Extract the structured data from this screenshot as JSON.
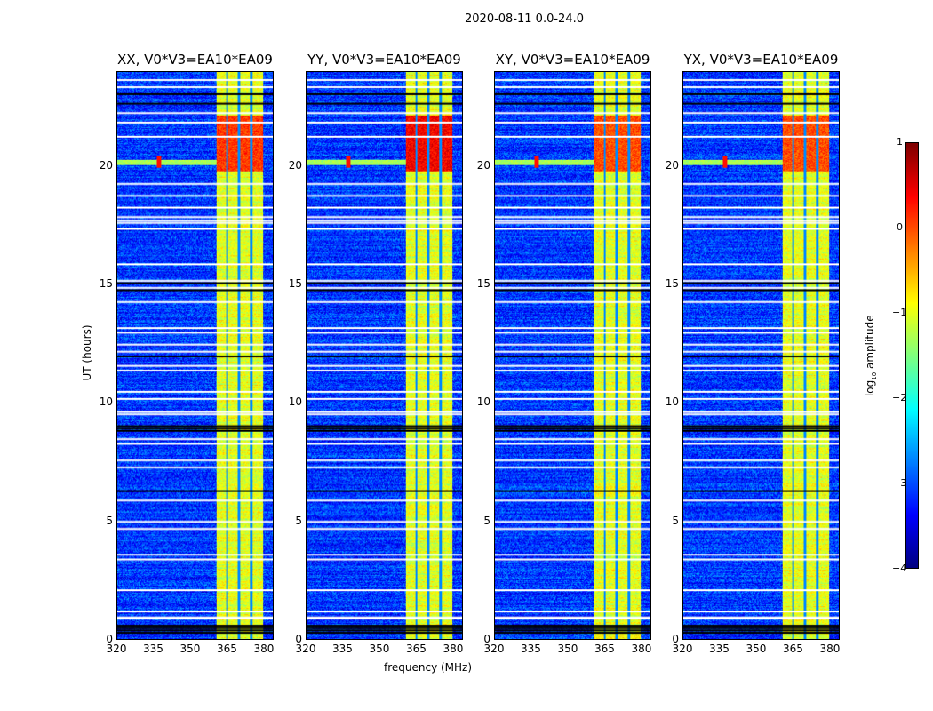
{
  "title": "2020-08-11 0.0-24.0",
  "chart_data": {
    "type": "heatmap",
    "title": "2020-08-11 0.0-24.0",
    "xlabel": "frequency (MHz)",
    "ylabel": "UT (hours)",
    "xlim": [
      320,
      384
    ],
    "ylim": [
      0,
      24
    ],
    "xticks": [
      320,
      335,
      350,
      365,
      380
    ],
    "yticks": [
      0,
      5,
      10,
      15,
      20
    ],
    "panels": [
      {
        "title": "XX, V0*V3=EA10*EA09",
        "band_peak": 0.2
      },
      {
        "title": "YY, V0*V3=EA10*EA09",
        "band_peak": 0.5
      },
      {
        "title": "XY, V0*V3=EA10*EA09",
        "band_peak": 0.1
      },
      {
        "title": "YX, V0*V3=EA10*EA09",
        "band_peak": 0.1
      }
    ],
    "colorbar": {
      "label": "log10 amplitude",
      "label_main": "log",
      "label_sub": "10",
      "label_rest": " amplitude",
      "range": [
        -4,
        1
      ],
      "ticks": [
        -4,
        -3,
        -2,
        -1,
        0,
        1
      ],
      "tick_labels": [
        "−4",
        "−3",
        "−2",
        "−1",
        "0",
        "1"
      ],
      "colormap": "jet"
    },
    "background_level": -3.1,
    "rfi_band_mhz": [
      360.5,
      380
    ],
    "band_level": -1.0,
    "band_gaps_mhz": [
      365,
      370,
      375
    ],
    "bright_hours": [
      19.8,
      22.2
    ],
    "rfi_line_hour": 20.2,
    "rfi_spot_mhz": 337,
    "flagged_white_hours": [
      23.7,
      23.4,
      22.3,
      21.9,
      21.3,
      19.3,
      18.8,
      18.3,
      17.9,
      17.75,
      17.65,
      17.4,
      15.9,
      15.2,
      14.9,
      14.3,
      13.2,
      13.0,
      12.5,
      12.2,
      11.6,
      11.4,
      10.5,
      10.2,
      9.65,
      9.55,
      8.5,
      8.3,
      7.6,
      7.3,
      5.9,
      5.0,
      4.7,
      3.6,
      3.4,
      2.1,
      1.2,
      0.95,
      0.9
    ],
    "flagged_black_hours": [
      23.1,
      22.7,
      15.1,
      14.8,
      12.0,
      9.05,
      8.95,
      8.85,
      6.3,
      0.6,
      0.5,
      0.4,
      0.3
    ]
  }
}
